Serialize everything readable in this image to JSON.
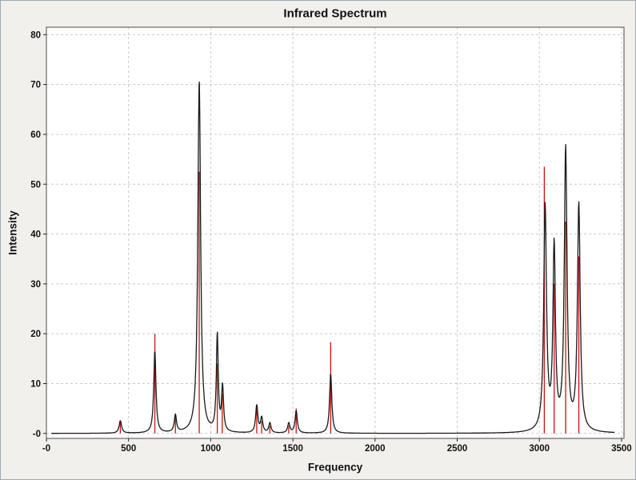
{
  "chart_data": {
    "type": "line",
    "title": "Infrared Spectrum",
    "xlabel": "Frequency",
    "ylabel": "Intensity",
    "xlim": [
      0,
      3515
    ],
    "ylim": [
      -1,
      81.5
    ],
    "x_ticks": [
      0,
      500,
      1000,
      1500,
      2000,
      2500,
      3000,
      3500
    ],
    "x_tick_labels": [
      "-0",
      "500",
      "1000",
      "1500",
      "2000",
      "2500",
      "3000",
      "3500"
    ],
    "y_ticks": [
      0,
      10,
      20,
      30,
      40,
      50,
      60,
      70,
      80
    ],
    "y_tick_labels": [
      "-0",
      "10",
      "20",
      "30",
      "40",
      "50",
      "60",
      "70",
      "80"
    ],
    "grid": "dashed",
    "legend": "none",
    "colors": {
      "curve": "#1a1a1a",
      "sticks": "#cc1111",
      "grid": "#c9c9c9",
      "frame": "#4a4a4a",
      "panel": "#ffffff",
      "background": "#f1f0ec"
    },
    "series": [
      {
        "name": "ir-stick-spectrum",
        "type": "stick",
        "points": [
          [
            450,
            2.2
          ],
          [
            660,
            20
          ],
          [
            785,
            3.5
          ],
          [
            930,
            52.5
          ],
          [
            1040,
            14
          ],
          [
            1070,
            8
          ],
          [
            1280,
            5.5
          ],
          [
            1310,
            2.5
          ],
          [
            1360,
            1.5
          ],
          [
            1475,
            1.5
          ],
          [
            1520,
            5
          ],
          [
            1730,
            18.3
          ],
          [
            3030,
            53.5
          ],
          [
            3090,
            30
          ],
          [
            3160,
            42.5
          ],
          [
            3240,
            35.5
          ]
        ]
      },
      {
        "name": "ir-broadened-spectrum",
        "type": "lorentzian-sum",
        "hwhm": 9,
        "x_range": [
          30,
          3460
        ],
        "peaks": [
          [
            450,
            2.5,
            9
          ],
          [
            660,
            16.5,
            8
          ],
          [
            785,
            3.5,
            8
          ],
          [
            930,
            71,
            10
          ],
          [
            1040,
            19.5,
            7
          ],
          [
            1072,
            9,
            7
          ],
          [
            1280,
            5.5,
            8
          ],
          [
            1310,
            3,
            8
          ],
          [
            1360,
            2,
            8
          ],
          [
            1475,
            2,
            8
          ],
          [
            1520,
            4.5,
            8
          ],
          [
            1730,
            12,
            8
          ],
          [
            3035,
            45,
            10
          ],
          [
            3090,
            36.5,
            9
          ],
          [
            3160,
            56.5,
            10
          ],
          [
            3240,
            45.5,
            10
          ]
        ]
      }
    ]
  }
}
